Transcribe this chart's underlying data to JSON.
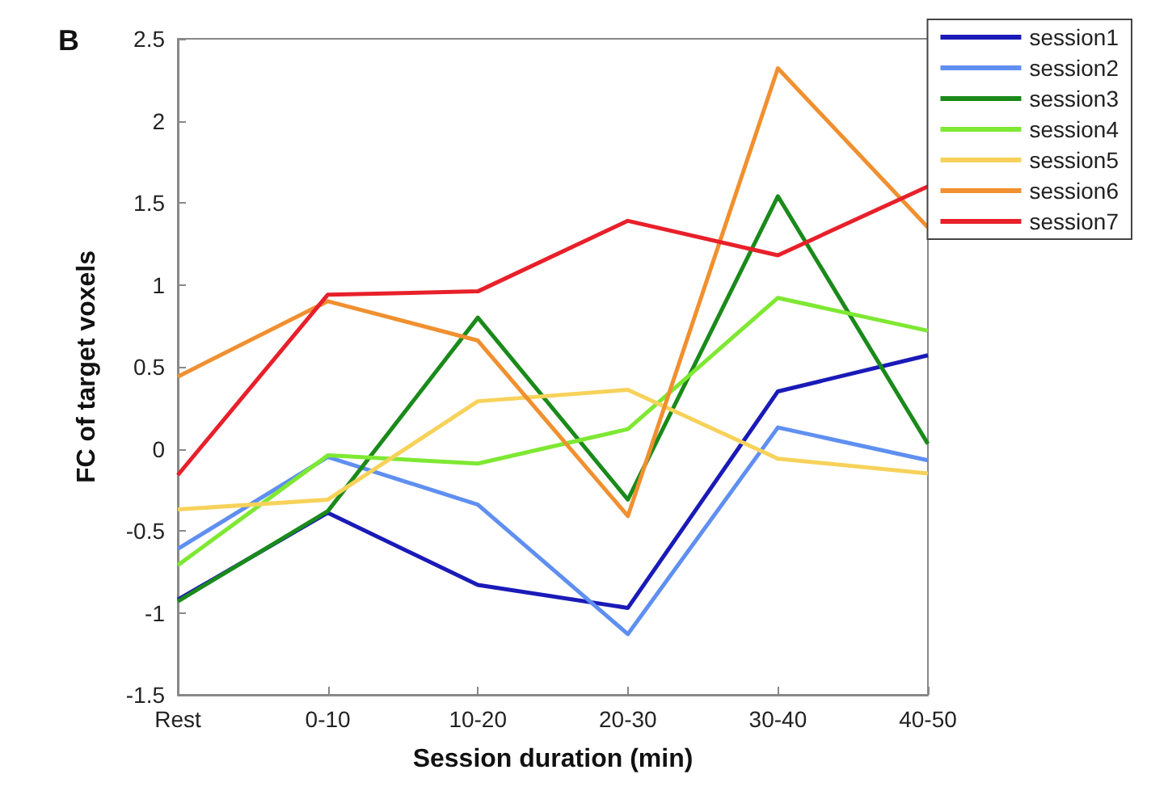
{
  "chart_data": {
    "type": "line",
    "xlabel": "Session duration (min)",
    "ylabel": "FC of target voxels",
    "annotations": [
      "B"
    ],
    "categories": [
      "Rest",
      "0-10",
      "10-20",
      "20-30",
      "30-40",
      "40-50"
    ],
    "series": [
      {
        "name": "session1",
        "color": "#1a1ab8",
        "values": [
          -0.92,
          -0.39,
          -0.83,
          -0.97,
          0.35,
          0.57
        ]
      },
      {
        "name": "session2",
        "color": "#5f8ff0",
        "values": [
          -0.61,
          -0.05,
          -0.34,
          -1.13,
          0.13,
          -0.07
        ]
      },
      {
        "name": "session3",
        "color": "#1a8a1a",
        "values": [
          -0.93,
          -0.38,
          0.8,
          -0.31,
          1.54,
          0.03
        ]
      },
      {
        "name": "session4",
        "color": "#7ee832",
        "values": [
          -0.71,
          -0.04,
          -0.09,
          0.12,
          0.92,
          0.72
        ]
      },
      {
        "name": "session5",
        "color": "#f7d25a",
        "values": [
          -0.37,
          -0.31,
          0.29,
          0.36,
          -0.06,
          -0.15
        ]
      },
      {
        "name": "session6",
        "color": "#f09030",
        "values": [
          0.44,
          0.9,
          0.66,
          -0.41,
          2.32,
          1.35
        ]
      },
      {
        "name": "session7",
        "color": "#e8202a",
        "values": [
          -0.16,
          0.94,
          0.96,
          1.39,
          1.18,
          1.6
        ]
      }
    ],
    "ylim": [
      -1.5,
      2.5
    ],
    "yticks": [
      -1.5,
      -1,
      -0.5,
      0,
      0.5,
      1,
      1.5,
      2,
      2.5
    ],
    "grid": false,
    "legend": "top right",
    "marker": "none",
    "line_style": "solid"
  }
}
